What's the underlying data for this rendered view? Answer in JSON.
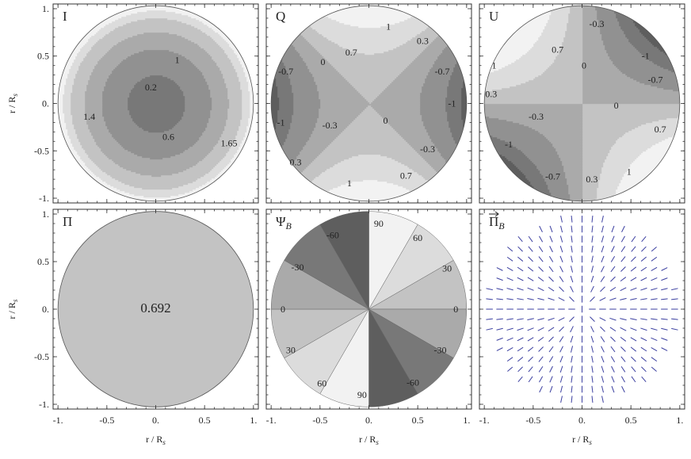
{
  "chart_data": [
    {
      "type": "heatmap",
      "panel_label": "I",
      "field": "intensity",
      "contour_labels": [
        {
          "text": "0.2",
          "x": -0.05,
          "y": 0.17
        },
        {
          "text": "0.6",
          "x": 0.13,
          "y": -0.35
        },
        {
          "text": "1",
          "x": 0.22,
          "y": 0.46
        },
        {
          "text": "1.4",
          "x": -0.68,
          "y": -0.14
        },
        {
          "text": "1.65",
          "x": 0.75,
          "y": -0.42
        }
      ],
      "ylabel": "r / R_s",
      "xlim": [
        -1.05,
        1.05
      ],
      "ylim": [
        -1.05,
        1.05
      ],
      "xticks": [],
      "yticks": [
        "-1.",
        "-0.5",
        "0.",
        "0.5",
        "1."
      ]
    },
    {
      "type": "heatmap",
      "panel_label": "Q",
      "field": "r^2 cos(2 phi)",
      "contour_labels": [
        {
          "text": "1",
          "x": 0.2,
          "y": 0.81
        },
        {
          "text": "0.3",
          "x": 0.55,
          "y": 0.66
        },
        {
          "text": "0.7",
          "x": -0.18,
          "y": 0.54
        },
        {
          "text": "0",
          "x": -0.47,
          "y": 0.44
        },
        {
          "text": "-0.7",
          "x": -0.85,
          "y": 0.34
        },
        {
          "text": "-0.7",
          "x": 0.75,
          "y": 0.34
        },
        {
          "text": "-1",
          "x": -0.9,
          "y": -0.2
        },
        {
          "text": "-0.3",
          "x": -0.4,
          "y": -0.23
        },
        {
          "text": "-1",
          "x": 0.85,
          "y": 0.0
        },
        {
          "text": "0",
          "x": 0.17,
          "y": -0.18
        },
        {
          "text": "-0.3",
          "x": 0.6,
          "y": -0.48
        },
        {
          "text": "0.3",
          "x": -0.75,
          "y": -0.62
        },
        {
          "text": "0.7",
          "x": 0.38,
          "y": -0.76
        },
        {
          "text": "1",
          "x": -0.2,
          "y": -0.84
        }
      ],
      "xlim": [
        -1.05,
        1.05
      ],
      "ylim": [
        -1.05,
        1.05
      ]
    },
    {
      "type": "heatmap",
      "panel_label": "U",
      "field": "-r^2 sin(2 phi)",
      "contour_labels": [
        {
          "text": "-0.3",
          "x": 0.15,
          "y": 0.84
        },
        {
          "text": "0.7",
          "x": -0.25,
          "y": 0.57
        },
        {
          "text": "-1",
          "x": 0.65,
          "y": 0.5
        },
        {
          "text": "1",
          "x": -0.9,
          "y": 0.4
        },
        {
          "text": "-0.7",
          "x": 0.75,
          "y": 0.25
        },
        {
          "text": "0",
          "x": 0.02,
          "y": 0.4
        },
        {
          "text": "0.3",
          "x": -0.93,
          "y": 0.1
        },
        {
          "text": "0",
          "x": 0.35,
          "y": -0.02
        },
        {
          "text": "-0.3",
          "x": -0.47,
          "y": -0.14
        },
        {
          "text": "-1",
          "x": -0.75,
          "y": -0.43
        },
        {
          "text": "0.7",
          "x": 0.8,
          "y": -0.27
        },
        {
          "text": "-0.7",
          "x": -0.3,
          "y": -0.77
        },
        {
          "text": "0.3",
          "x": 0.1,
          "y": -0.8
        },
        {
          "text": "1",
          "x": 0.48,
          "y": -0.72
        }
      ],
      "xlim": [
        -1.05,
        1.05
      ],
      "ylim": [
        -1.05,
        1.05
      ]
    },
    {
      "type": "heatmap",
      "panel_label": "Π",
      "field": "constant",
      "value": 0.692,
      "contour_labels": [
        {
          "text": "0.692",
          "x": 0.0,
          "y": 0.0
        }
      ],
      "xlabel": "r / R_s",
      "ylabel": "r / R_s",
      "xlim": [
        -1.05,
        1.05
      ],
      "ylim": [
        -1.05,
        1.05
      ],
      "xticks": [
        "-1.",
        "-0.5",
        "0.",
        "0.5",
        "1."
      ],
      "yticks": [
        "-1.",
        "-0.5",
        "0.",
        "0.5",
        "1."
      ]
    },
    {
      "type": "heatmap",
      "panel_label": "Ψ_B",
      "field": "polarization angle (sectors)",
      "contour_labels": [
        {
          "text": "90",
          "x": 0.1,
          "y": 0.9
        },
        {
          "text": "60",
          "x": 0.5,
          "y": 0.75
        },
        {
          "text": "30",
          "x": 0.8,
          "y": 0.43
        },
        {
          "text": "0",
          "x": 0.89,
          "y": 0.0
        },
        {
          "text": "-30",
          "x": 0.73,
          "y": -0.43
        },
        {
          "text": "-60",
          "x": 0.45,
          "y": -0.77
        },
        {
          "text": "90",
          "x": -0.07,
          "y": -0.9
        },
        {
          "text": "60",
          "x": -0.48,
          "y": -0.78
        },
        {
          "text": "30",
          "x": -0.8,
          "y": -0.43
        },
        {
          "text": "0",
          "x": -0.88,
          "y": 0.0
        },
        {
          "text": "-30",
          "x": -0.73,
          "y": 0.44
        },
        {
          "text": "-60",
          "x": -0.37,
          "y": 0.78
        }
      ],
      "xlabel": "r / R_s",
      "xlim": [
        -1.05,
        1.05
      ],
      "ylim": [
        -1.05,
        1.05
      ],
      "xticks": [
        "-1.",
        "-0.5",
        "0.",
        "0.5",
        "1."
      ]
    },
    {
      "type": "scatter",
      "panel_label": "Π_B",
      "panel_label_vector": true,
      "field": "polarization vectors (radial)",
      "marker": "tick segment",
      "marker_color": "#3b3fa0",
      "xlabel": "r / R_s",
      "xlim": [
        -1.05,
        1.05
      ],
      "ylim": [
        -1.05,
        1.05
      ],
      "xticks": [
        "-1.",
        "-0.5",
        "0.",
        "0.5",
        "1."
      ]
    }
  ],
  "palette": {
    "background": "#ffffff",
    "frame": "#333333",
    "contour_line": "#555555",
    "level_fills": [
      "#5e5e5e",
      "#787878",
      "#919191",
      "#aaaaaa",
      "#c3c3c3",
      "#dcdcdc",
      "#f2f2f2"
    ]
  }
}
